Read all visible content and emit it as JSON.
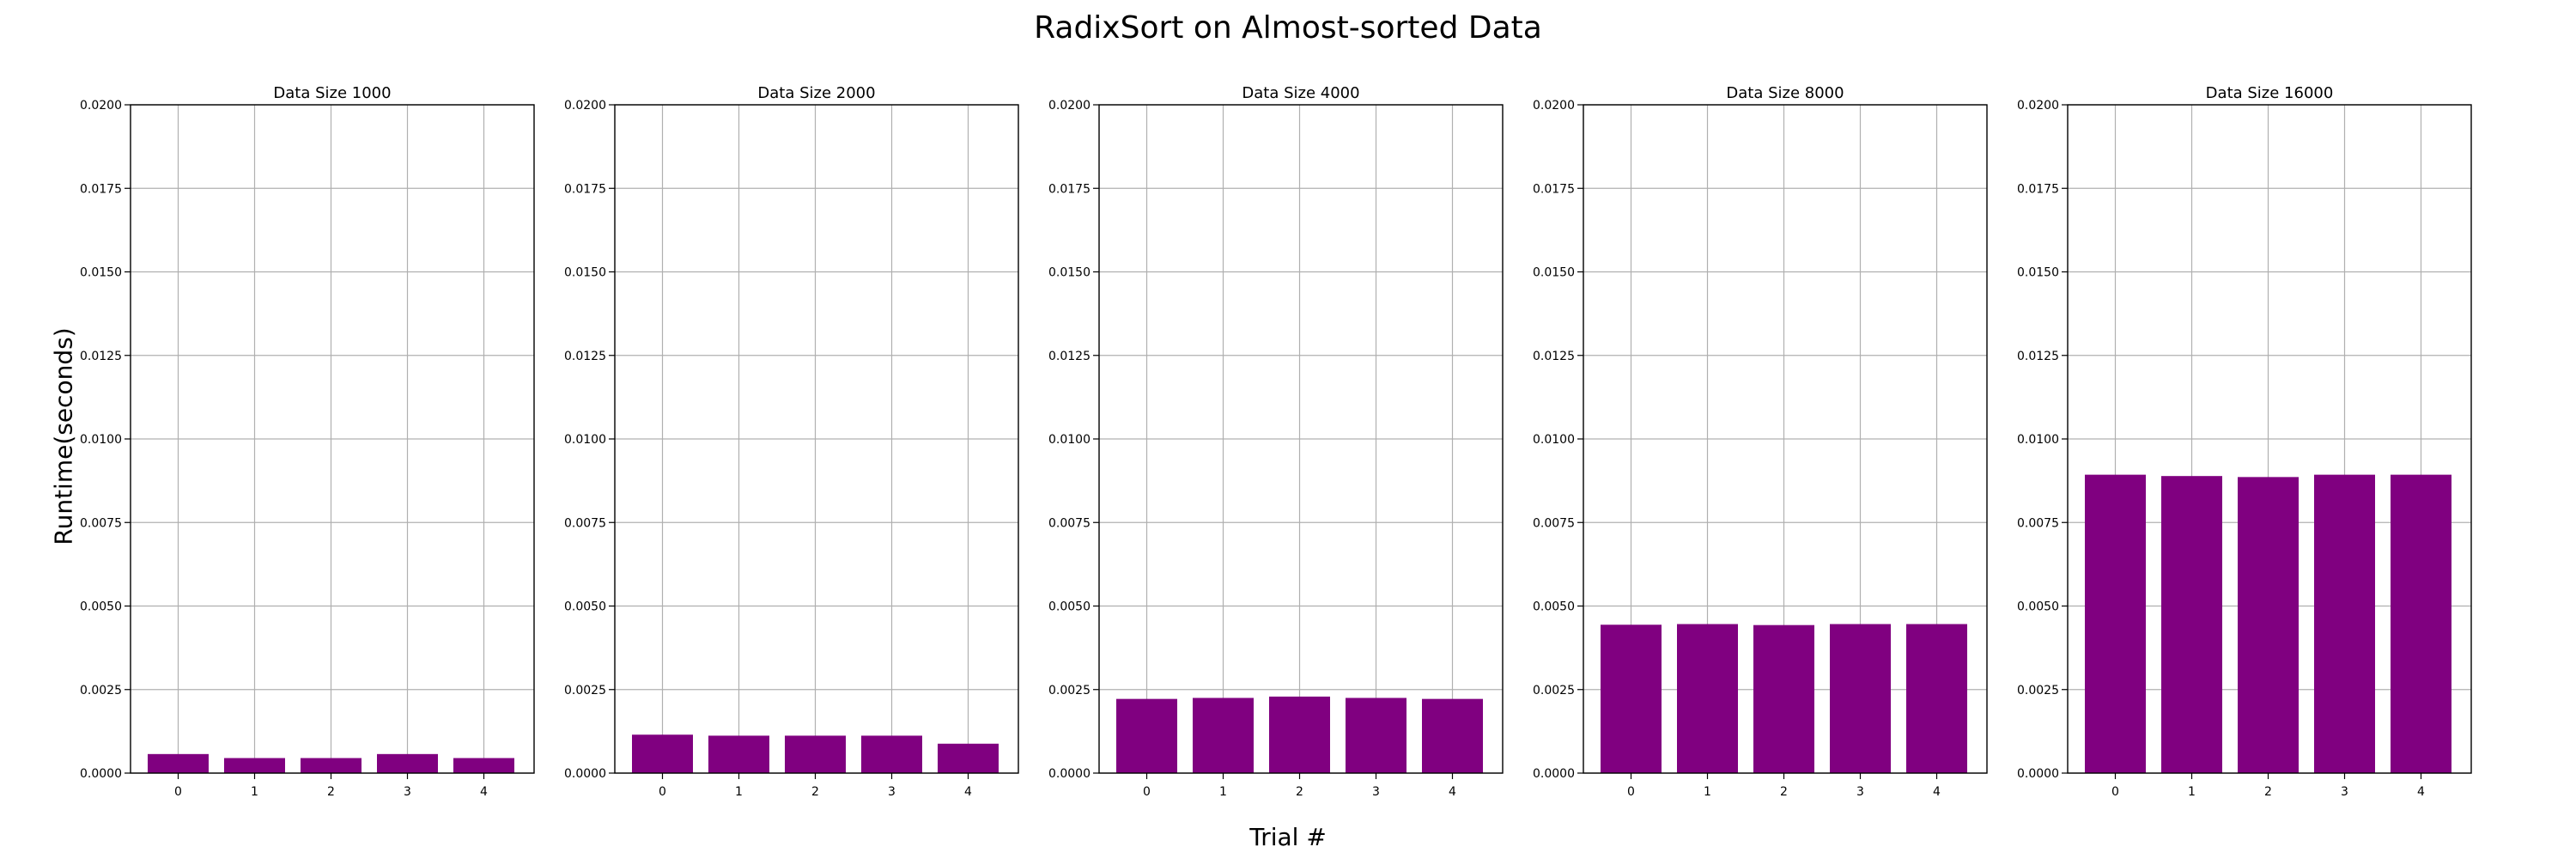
{
  "figure": {
    "title": "RadixSort on Almost-sorted Data",
    "xlabel": "Trial #",
    "ylabel": "Runtime(seconds)"
  },
  "style": {
    "bar_color": "#800080",
    "grid_color": "#b0b0b0"
  },
  "chart_data": [
    {
      "type": "bar",
      "title": "Data Size 1000",
      "categories": [
        "0",
        "1",
        "2",
        "3",
        "4"
      ],
      "values": [
        0.00057,
        0.00045,
        0.00045,
        0.00057,
        0.00045
      ],
      "ylim": [
        0,
        0.02
      ],
      "yticks": [
        "0.0000",
        "0.0025",
        "0.0050",
        "0.0075",
        "0.0100",
        "0.0125",
        "0.0150",
        "0.0175",
        "0.0200"
      ],
      "grid": true
    },
    {
      "type": "bar",
      "title": "Data Size 2000",
      "categories": [
        "0",
        "1",
        "2",
        "3",
        "4"
      ],
      "values": [
        0.00115,
        0.00112,
        0.00112,
        0.00112,
        0.00088
      ],
      "ylim": [
        0,
        0.02
      ],
      "yticks": [
        "0.0000",
        "0.0025",
        "0.0050",
        "0.0075",
        "0.0100",
        "0.0125",
        "0.0150",
        "0.0175",
        "0.0200"
      ],
      "grid": true
    },
    {
      "type": "bar",
      "title": "Data Size 4000",
      "categories": [
        "0",
        "1",
        "2",
        "3",
        "4"
      ],
      "values": [
        0.00222,
        0.00225,
        0.00229,
        0.00225,
        0.00222
      ],
      "ylim": [
        0,
        0.02
      ],
      "yticks": [
        "0.0000",
        "0.0025",
        "0.0050",
        "0.0075",
        "0.0100",
        "0.0125",
        "0.0150",
        "0.0175",
        "0.0200"
      ],
      "grid": true
    },
    {
      "type": "bar",
      "title": "Data Size 8000",
      "categories": [
        "0",
        "1",
        "2",
        "3",
        "4"
      ],
      "values": [
        0.00444,
        0.00446,
        0.00443,
        0.00446,
        0.00446
      ],
      "ylim": [
        0,
        0.02
      ],
      "yticks": [
        "0.0000",
        "0.0025",
        "0.0050",
        "0.0075",
        "0.0100",
        "0.0125",
        "0.0150",
        "0.0175",
        "0.0200"
      ],
      "grid": true
    },
    {
      "type": "bar",
      "title": "Data Size 16000",
      "categories": [
        "0",
        "1",
        "2",
        "3",
        "4"
      ],
      "values": [
        0.00893,
        0.00889,
        0.00886,
        0.00893,
        0.00893
      ],
      "ylim": [
        0,
        0.02
      ],
      "yticks": [
        "0.0000",
        "0.0025",
        "0.0050",
        "0.0075",
        "0.0100",
        "0.0125",
        "0.0150",
        "0.0175",
        "0.0200"
      ],
      "grid": true
    }
  ]
}
